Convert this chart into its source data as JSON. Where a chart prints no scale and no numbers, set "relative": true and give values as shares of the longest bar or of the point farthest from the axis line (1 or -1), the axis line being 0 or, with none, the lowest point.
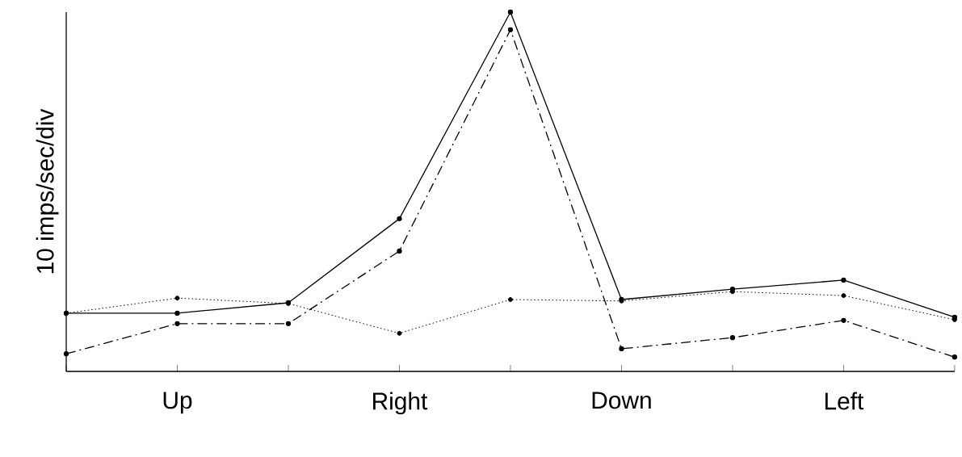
{
  "chart_data": {
    "type": "line",
    "ylabel": "10 imps/sec/div",
    "relative": true,
    "marker": "circle",
    "categories": [
      null,
      "Up",
      null,
      "Right",
      null,
      "Down",
      null,
      "Left",
      null
    ],
    "series": [
      {
        "color": "#000000",
        "line_style": "solid",
        "values": [
          0.162,
          0.162,
          0.191,
          0.425,
          1,
          0.2,
          0.229,
          0.254,
          0.151
        ]
      },
      {
        "color": "#000000",
        "line_style": "dashdot",
        "values": [
          0.049,
          0.133,
          0.133,
          0.335,
          0.951,
          0.063,
          0.094,
          0.142,
          0.04
        ]
      },
      {
        "color": "#000000",
        "line_style": "dotted",
        "values": [
          0.162,
          0.204,
          0.189,
          0.106,
          0.2,
          0.196,
          0.222,
          0.211,
          0.144
        ]
      }
    ]
  }
}
